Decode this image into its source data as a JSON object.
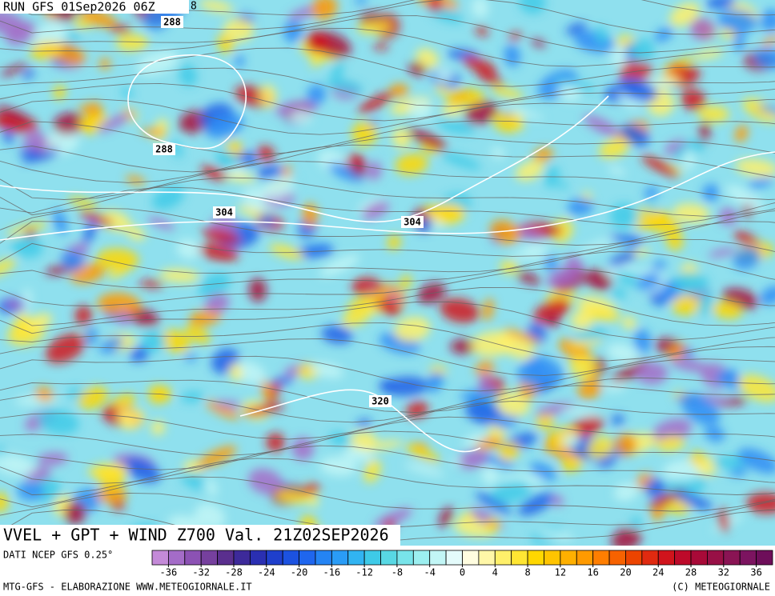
{
  "header": {
    "run": "RUN GFS 01Sep2026 06Z",
    "frame": "8"
  },
  "contour_labels": [
    {
      "text": "288"
    },
    {
      "text": "288"
    },
    {
      "text": "304"
    },
    {
      "text": "304"
    },
    {
      "text": "320"
    }
  ],
  "title": "VVEL + GPT + WIND Z700 Val. 21Z02SEP2026",
  "source": "DATI NCEP GFS 0.25°",
  "colorbar": {
    "range": [
      -38,
      38
    ],
    "ticks": [
      -36,
      -32,
      -28,
      -24,
      -20,
      -16,
      -12,
      -8,
      -4,
      0,
      4,
      8,
      12,
      16,
      20,
      24,
      28,
      32,
      36
    ],
    "colors": [
      "#c48ad8",
      "#a46cc8",
      "#8c52b4",
      "#76409e",
      "#5a2f8e",
      "#3d2a9a",
      "#2a2fb2",
      "#1f3fcc",
      "#1c52e0",
      "#1f66ee",
      "#2484f4",
      "#2a9cf6",
      "#31b4f2",
      "#3ecae8",
      "#58d8e4",
      "#78e4ea",
      "#9ceff0",
      "#c2f6f6",
      "#e4fbfb",
      "#fffde0",
      "#fff7a8",
      "#fff06a",
      "#ffe633",
      "#ffd700",
      "#ffc400",
      "#ffb000",
      "#ff9a00",
      "#ff7e00",
      "#f76200",
      "#ec4400",
      "#e02a10",
      "#d0141c",
      "#bd0a2a",
      "#a80a38",
      "#981046",
      "#8a1454",
      "#7c1460",
      "#6e0e5a"
    ]
  },
  "footer": {
    "left": "MTG-GFS - ELABORAZIONE WWW.METEOGIORNALE.IT",
    "right": "(C) METEOGIORNALE"
  }
}
